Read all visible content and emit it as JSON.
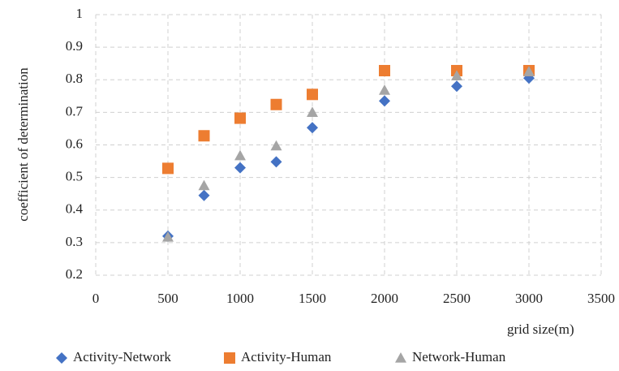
{
  "chart_data": {
    "type": "scatter",
    "x_label": "grid size(m)",
    "y_label": "coefficient of determination",
    "x": [
      500,
      750,
      1000,
      1250,
      1500,
      2000,
      2500,
      3000
    ],
    "series": [
      {
        "name": "Activity-Network",
        "color": "#4472c4",
        "marker": "diamond",
        "values": [
          0.32,
          0.445,
          0.53,
          0.548,
          0.653,
          0.735,
          0.78,
          0.805
        ]
      },
      {
        "name": "Activity-Human",
        "color": "#ed7d31",
        "marker": "square",
        "values": [
          0.528,
          0.628,
          0.682,
          0.724,
          0.755,
          0.828,
          0.828,
          0.828
        ]
      },
      {
        "name": "Network-Human",
        "color": "#a5a5a5",
        "marker": "triangle",
        "values": [
          0.317,
          0.475,
          0.567,
          0.597,
          0.7,
          0.768,
          0.812,
          0.825
        ]
      }
    ],
    "xlim": [
      0,
      3500
    ],
    "xticks": [
      0,
      500,
      1000,
      1500,
      2000,
      2500,
      3000,
      3500
    ],
    "ylim": [
      0.2,
      1
    ],
    "yticks": [
      0.2,
      0.3,
      0.4,
      0.5,
      0.6,
      0.7,
      0.8,
      0.9,
      1
    ],
    "grid": true,
    "legend": "bottom"
  }
}
